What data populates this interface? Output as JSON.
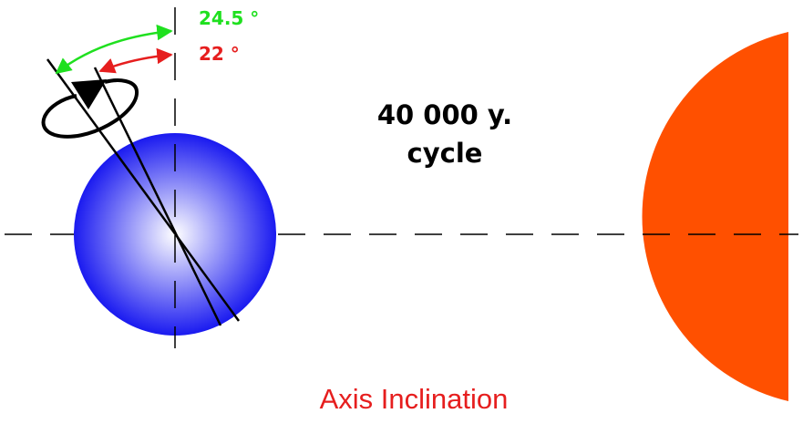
{
  "labels": {
    "angle_max": "24.5 °",
    "angle_min": "22 °",
    "cycle_line1": "40 000 y.",
    "cycle_line2": "cycle",
    "title": "Axis Inclination"
  },
  "values": {
    "tilt_max_deg": 24.5,
    "tilt_min_deg": 22
  },
  "colors": {
    "angle_max": "#1fe01f",
    "angle_min": "#e61e1e",
    "title": "#e61e1e",
    "sun": "#ff5000",
    "planet_edge": "#1a1af0",
    "planet_center": "#ffffff",
    "axis_line": "#000000"
  },
  "icons": {
    "rotation": "rotation-arrow-icon"
  }
}
